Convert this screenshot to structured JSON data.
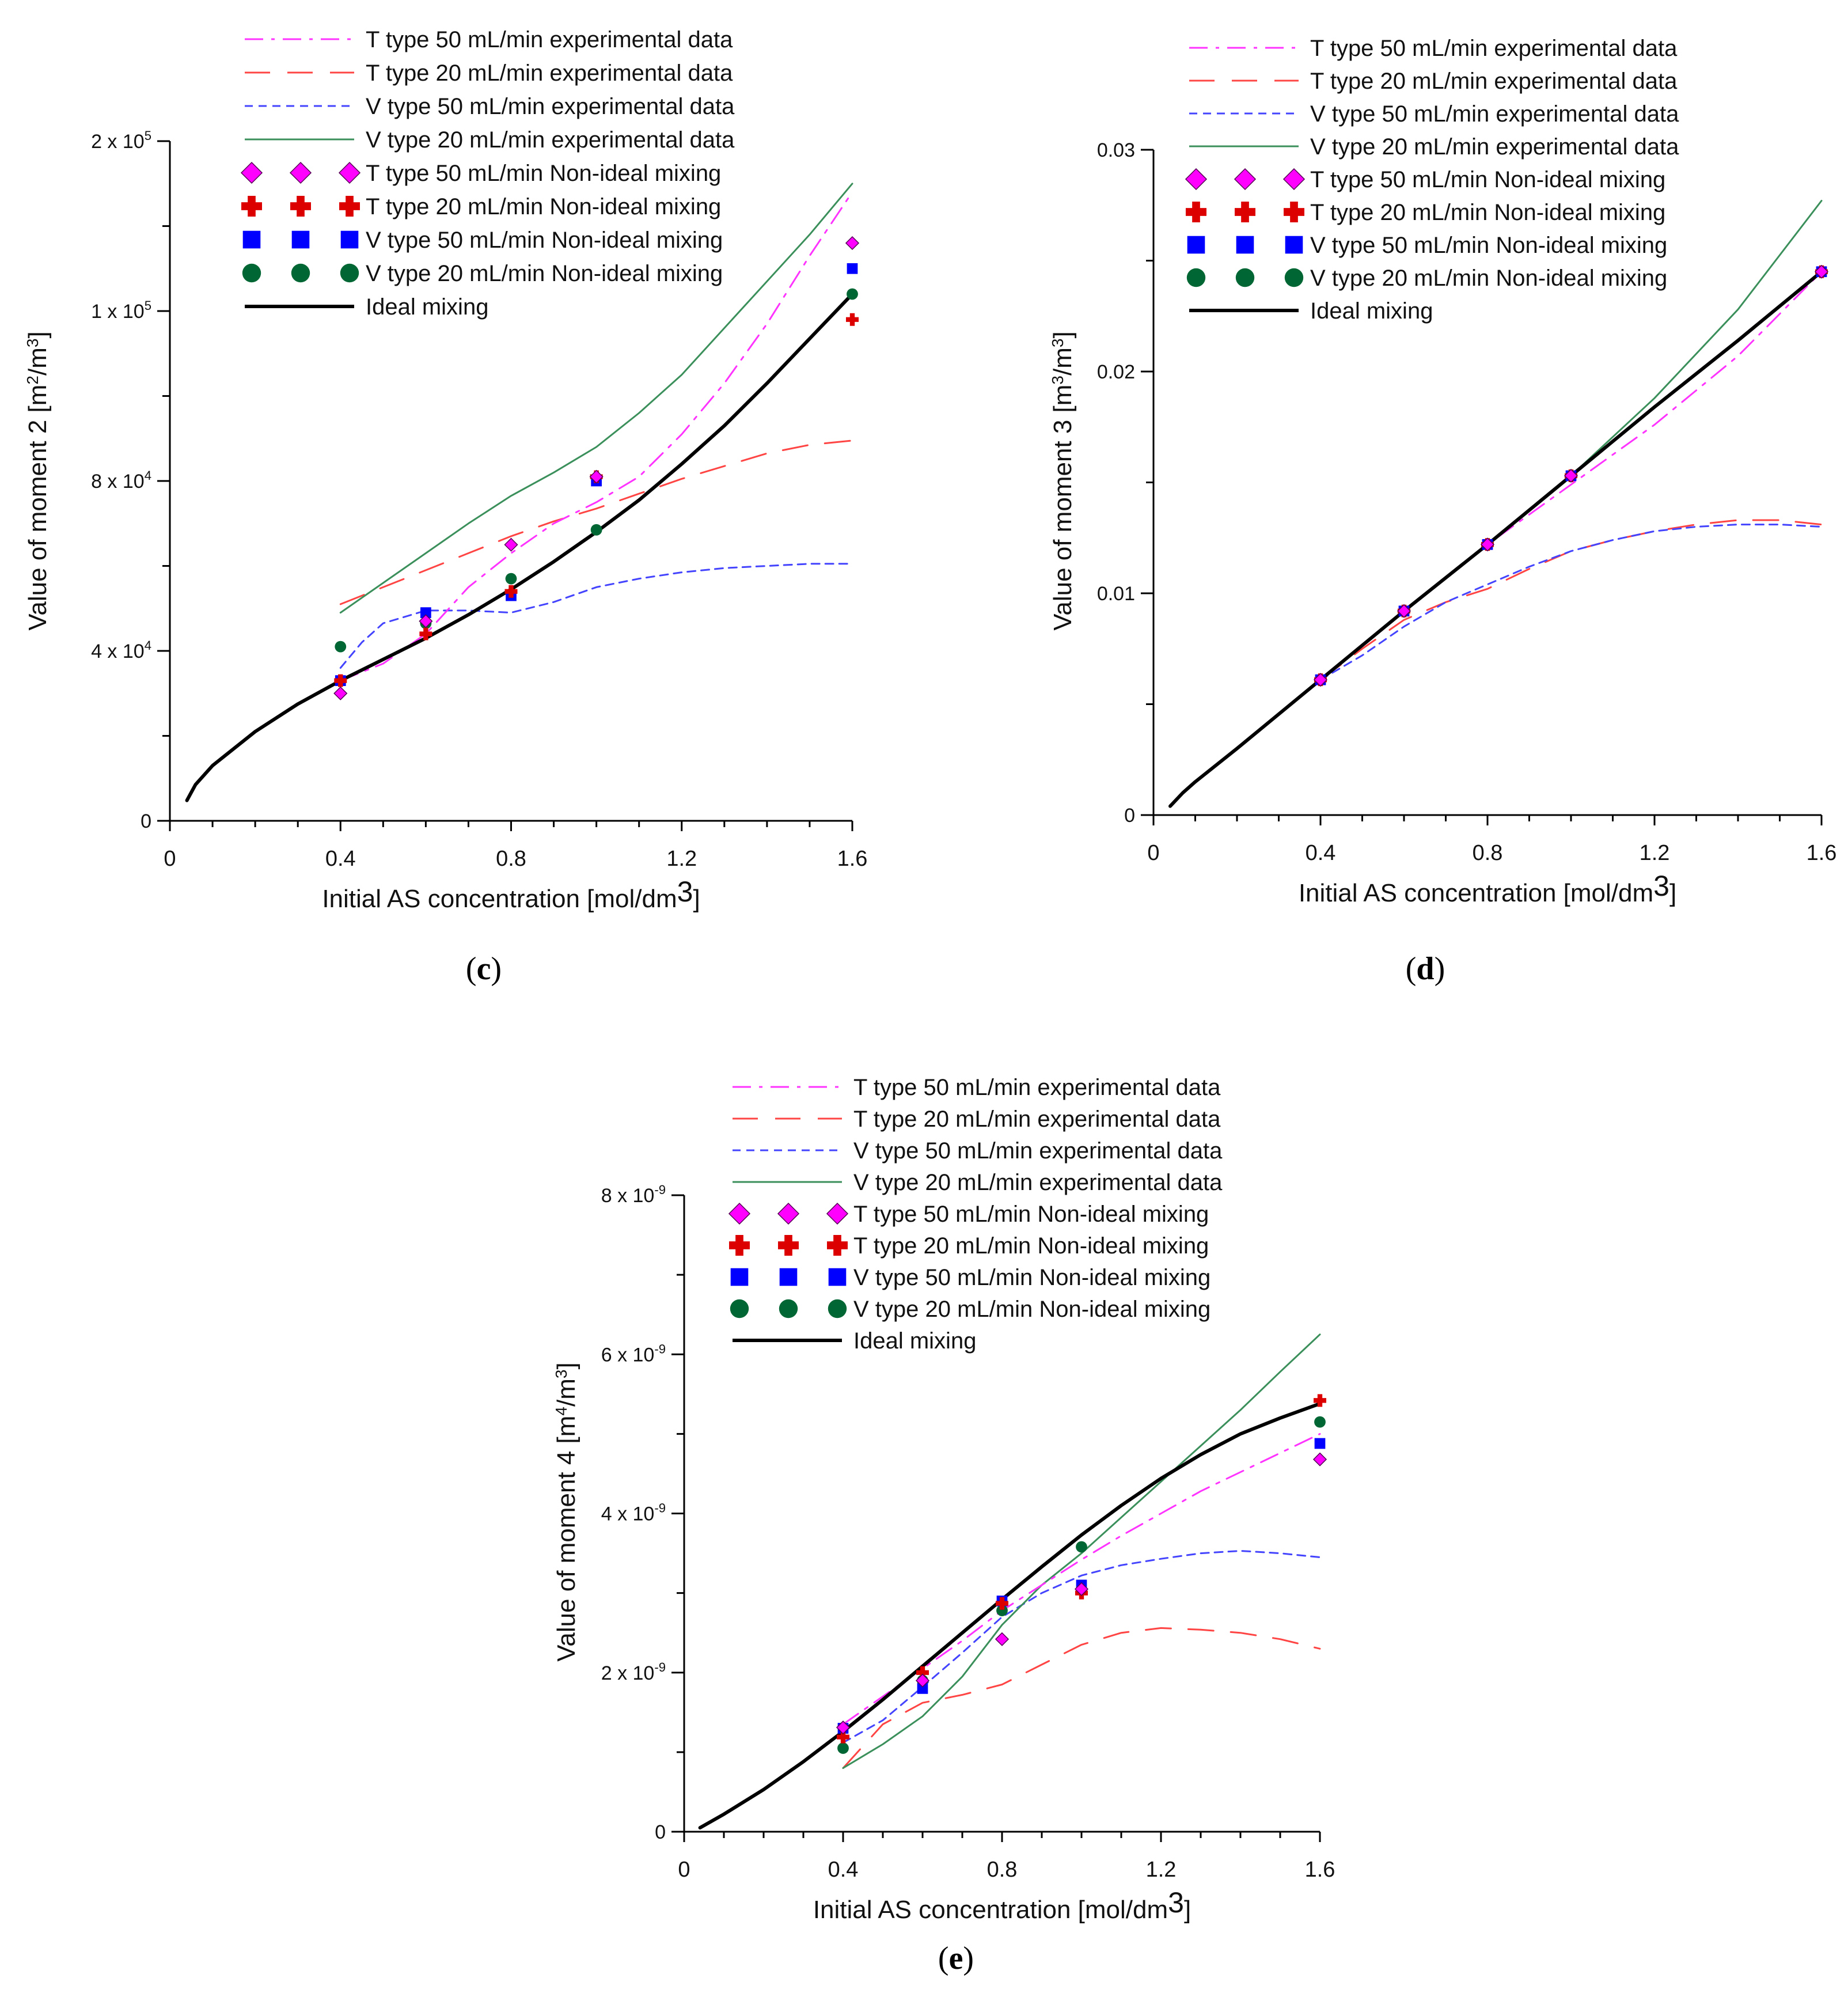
{
  "legend_entries": [
    {
      "key": "t50_exp",
      "label": "T type 50 mL/min experimental data",
      "kind": "line",
      "color": "#ff33ff",
      "dash": "32,14,6,14",
      "width": 3
    },
    {
      "key": "t20_exp",
      "label": "T type 20 mL/min experimental data",
      "kind": "line",
      "color": "#ff4444",
      "dash": "44,30",
      "width": 3
    },
    {
      "key": "v50_exp",
      "label": "V type 50 mL/min experimental data",
      "kind": "line",
      "color": "#4444ff",
      "dash": "14,10",
      "width": 3
    },
    {
      "key": "v20_exp",
      "label": "V type 20 mL/min experimental data",
      "kind": "line",
      "color": "#3a8f5a",
      "dash": "",
      "width": 3
    },
    {
      "key": "t50_nim",
      "label": "T type 50 mL/min Non-ideal mixing",
      "kind": "diamond",
      "color": "#ff00ff"
    },
    {
      "key": "t20_nim",
      "label": "T type 20 mL/min Non-ideal mixing",
      "kind": "plus",
      "color": "#dd0000"
    },
    {
      "key": "v50_nim",
      "label": "V type 50 mL/min Non-ideal mixing",
      "kind": "square",
      "color": "#0000ff"
    },
    {
      "key": "v20_nim",
      "label": "V type 20 mL/min Non-ideal mixing",
      "kind": "circle",
      "color": "#006633"
    },
    {
      "key": "ideal",
      "label": "Ideal mixing",
      "kind": "line",
      "color": "#000000",
      "dash": "",
      "width": 6
    }
  ],
  "chart_data": [
    {
      "id": "c",
      "type": "line",
      "panel_label": "c",
      "xlabel": "Initial AS concentration [mol/dm3]",
      "ylabel": "Value of moment 2 [m2/m3]",
      "xlim": [
        0,
        1.6
      ],
      "ylim": [
        0,
        160000
      ],
      "xticks": [
        {
          "v": 0,
          "label": "0"
        },
        {
          "v": 0.4,
          "label": "0.4"
        },
        {
          "v": 0.8,
          "label": "0.8"
        },
        {
          "v": 1.2,
          "label": "1.2"
        },
        {
          "v": 1.6,
          "label": "1.6"
        }
      ],
      "yticks": [
        {
          "v": 0,
          "label": "0"
        },
        {
          "v": 40000,
          "label": "4 x 10^4"
        },
        {
          "v": 80000,
          "label": "8 x 10^4"
        },
        {
          "v": 120000,
          "label": "1 x 10^5"
        },
        {
          "v": 160000,
          "label": "2 x 10^5"
        }
      ],
      "lines": {
        "ideal": {
          "x": [
            0.04,
            0.06,
            0.1,
            0.2,
            0.3,
            0.4,
            0.5,
            0.6,
            0.7,
            0.8,
            0.9,
            1.0,
            1.1,
            1.2,
            1.3,
            1.4,
            1.5,
            1.6
          ],
          "y": [
            4800,
            8500,
            13000,
            21000,
            27500,
            33000,
            38000,
            43000,
            48500,
            54500,
            61000,
            68000,
            75500,
            84000,
            93000,
            103000,
            113500,
            124000
          ]
        },
        "t50_exp": {
          "x": [
            0.4,
            0.5,
            0.6,
            0.7,
            0.8,
            0.9,
            1.0,
            1.1,
            1.2,
            1.3,
            1.4,
            1.5,
            1.6
          ],
          "y": [
            33000,
            37000,
            44000,
            55000,
            63000,
            70000,
            75000,
            81000,
            91000,
            103000,
            117000,
            133000,
            148000
          ]
        },
        "t20_exp": {
          "x": [
            0.4,
            0.5,
            0.6,
            0.7,
            0.8,
            0.9,
            1.0,
            1.1,
            1.2,
            1.3,
            1.4,
            1.5,
            1.6
          ],
          "y": [
            51000,
            55000,
            59000,
            63000,
            67000,
            70500,
            73500,
            77000,
            80500,
            83500,
            86500,
            88500,
            89500
          ]
        },
        "v50_exp": {
          "x": [
            0.4,
            0.45,
            0.5,
            0.6,
            0.7,
            0.8,
            0.9,
            1.0,
            1.1,
            1.2,
            1.3,
            1.4,
            1.5,
            1.6
          ],
          "y": [
            36000,
            42000,
            46500,
            49500,
            49500,
            49000,
            51500,
            55000,
            57000,
            58500,
            59500,
            60000,
            60500,
            60500
          ]
        },
        "v20_exp": {
          "x": [
            0.4,
            0.5,
            0.6,
            0.7,
            0.8,
            0.9,
            1.0,
            1.1,
            1.2,
            1.3,
            1.4,
            1.5,
            1.6
          ],
          "y": [
            49000,
            56000,
            63000,
            70000,
            76500,
            82000,
            88000,
            96000,
            105000,
            116000,
            127000,
            138000,
            150000
          ]
        }
      },
      "markers": {
        "t50_nim": {
          "x": [
            0.4,
            0.6,
            0.8,
            1.0,
            1.6
          ],
          "y": [
            30000,
            47000,
            65000,
            81000,
            136000
          ]
        },
        "t20_nim": {
          "x": [
            0.4,
            0.6,
            0.8,
            1.0,
            1.6
          ],
          "y": [
            33000,
            44000,
            54000,
            81000,
            118000
          ]
        },
        "v50_nim": {
          "x": [
            0.4,
            0.6,
            0.8,
            1.0,
            1.6
          ],
          "y": [
            33000,
            49000,
            53000,
            80000,
            130000
          ]
        },
        "v20_nim": {
          "x": [
            0.4,
            0.6,
            0.8,
            1.0,
            1.6
          ],
          "y": [
            41000,
            46500,
            57000,
            68500,
            124000
          ]
        }
      }
    },
    {
      "id": "d",
      "type": "line",
      "panel_label": "d",
      "xlabel": "Initial AS concentration [mol/dm3]",
      "ylabel": "Value of moment 3 [m3/m3]",
      "xlim": [
        0,
        1.6
      ],
      "ylim": [
        0,
        0.03
      ],
      "xticks": [
        {
          "v": 0,
          "label": "0"
        },
        {
          "v": 0.4,
          "label": "0.4"
        },
        {
          "v": 0.8,
          "label": "0.8"
        },
        {
          "v": 1.2,
          "label": "1.2"
        },
        {
          "v": 1.6,
          "label": "1.6"
        }
      ],
      "yticks": [
        {
          "v": 0,
          "label": "0"
        },
        {
          "v": 0.01,
          "label": "0.01"
        },
        {
          "v": 0.02,
          "label": "0.02"
        },
        {
          "v": 0.03,
          "label": "0.03"
        }
      ],
      "lines": {
        "ideal": {
          "x": [
            0.04,
            0.07,
            0.1,
            0.2,
            0.4,
            0.6,
            0.8,
            1.0,
            1.2,
            1.4,
            1.6
          ],
          "y": [
            0.0004,
            0.001,
            0.0015,
            0.003,
            0.0061,
            0.0092,
            0.0122,
            0.0153,
            0.0184,
            0.0214,
            0.0245
          ]
        },
        "t50_exp": {
          "x": [
            0.4,
            0.6,
            0.8,
            1.0,
            1.2,
            1.4,
            1.6
          ],
          "y": [
            0.0061,
            0.0092,
            0.0122,
            0.0149,
            0.0176,
            0.0207,
            0.0245
          ]
        },
        "t20_exp": {
          "x": [
            0.4,
            0.5,
            0.6,
            0.7,
            0.8,
            0.9,
            1.0,
            1.1,
            1.2,
            1.3,
            1.4,
            1.5,
            1.6
          ],
          "y": [
            0.0061,
            0.0075,
            0.0088,
            0.0096,
            0.0102,
            0.0111,
            0.0119,
            0.0124,
            0.0128,
            0.0131,
            0.0133,
            0.0133,
            0.0131
          ]
        },
        "v50_exp": {
          "x": [
            0.4,
            0.5,
            0.6,
            0.7,
            0.8,
            0.9,
            1.0,
            1.1,
            1.2,
            1.3,
            1.4,
            1.5,
            1.6
          ],
          "y": [
            0.0061,
            0.0072,
            0.0085,
            0.0096,
            0.0104,
            0.0112,
            0.0119,
            0.0124,
            0.0128,
            0.013,
            0.0131,
            0.0131,
            0.013
          ]
        },
        "v20_exp": {
          "x": [
            0.4,
            0.6,
            0.8,
            1.0,
            1.2,
            1.4,
            1.6
          ],
          "y": [
            0.0061,
            0.0092,
            0.0122,
            0.0153,
            0.0188,
            0.0228,
            0.0277
          ]
        }
      },
      "markers": {
        "t50_nim": {
          "x": [
            0.4,
            0.6,
            0.8,
            1.0,
            1.6
          ],
          "y": [
            0.0061,
            0.0092,
            0.0122,
            0.0153,
            0.0245
          ]
        },
        "t20_nim": {
          "x": [
            0.4,
            0.6,
            0.8,
            1.0,
            1.6
          ],
          "y": [
            0.0061,
            0.0092,
            0.0122,
            0.0153,
            0.0245
          ]
        },
        "v50_nim": {
          "x": [
            0.4,
            0.6,
            0.8,
            1.0,
            1.6
          ],
          "y": [
            0.0061,
            0.0092,
            0.0122,
            0.0153,
            0.0245
          ]
        },
        "v20_nim": {
          "x": [
            0.4,
            0.6,
            0.8,
            1.0,
            1.6
          ],
          "y": [
            0.0061,
            0.0092,
            0.0122,
            0.0153,
            0.0245
          ]
        }
      }
    },
    {
      "id": "e",
      "type": "line",
      "panel_label": "e",
      "xlabel": "Initial AS concentration [mol/dm3]",
      "ylabel": "Value of moment 4 [m4/m3]",
      "xlim": [
        0,
        1.6
      ],
      "ylim": [
        0,
        8e-09
      ],
      "xticks": [
        {
          "v": 0,
          "label": "0"
        },
        {
          "v": 0.4,
          "label": "0.4"
        },
        {
          "v": 0.8,
          "label": "0.8"
        },
        {
          "v": 1.2,
          "label": "1.2"
        },
        {
          "v": 1.6,
          "label": "1.6"
        }
      ],
      "yticks": [
        {
          "v": 0,
          "label": "0"
        },
        {
          "v": 2e-09,
          "label": "2 x 10^-9"
        },
        {
          "v": 4e-09,
          "label": "4 x 10^-9"
        },
        {
          "v": 6e-09,
          "label": "6 x 10^-9"
        },
        {
          "v": 8e-09,
          "label": "8 x 10^-9"
        }
      ],
      "lines": {
        "ideal": {
          "x": [
            0.04,
            0.1,
            0.2,
            0.3,
            0.4,
            0.5,
            0.6,
            0.7,
            0.8,
            0.9,
            1.0,
            1.1,
            1.2,
            1.3,
            1.4,
            1.5,
            1.6
          ],
          "y": [
            5e-11,
            2.2e-10,
            5.3e-10,
            8.8e-10,
            1.26e-09,
            1.66e-09,
            2.08e-09,
            2.5e-09,
            2.92e-09,
            3.33e-09,
            3.73e-09,
            4.1e-09,
            4.44e-09,
            4.74e-09,
            5e-09,
            5.2e-09,
            5.38e-09
          ]
        },
        "t50_exp": {
          "x": [
            0.4,
            0.5,
            0.6,
            0.7,
            0.8,
            0.9,
            1.0,
            1.1,
            1.2,
            1.3,
            1.4,
            1.5,
            1.6
          ],
          "y": [
            1.35e-09,
            1.7e-09,
            2.05e-09,
            2.4e-09,
            2.78e-09,
            3.1e-09,
            3.42e-09,
            3.72e-09,
            4e-09,
            4.28e-09,
            4.52e-09,
            4.76e-09,
            5e-09
          ]
        },
        "t20_exp": {
          "x": [
            0.4,
            0.5,
            0.6,
            0.7,
            0.8,
            0.9,
            1.0,
            1.1,
            1.2,
            1.3,
            1.4,
            1.5,
            1.6
          ],
          "y": [
            8e-10,
            1.35e-09,
            1.62e-09,
            1.72e-09,
            1.85e-09,
            2.1e-09,
            2.35e-09,
            2.5e-09,
            2.56e-09,
            2.54e-09,
            2.5e-09,
            2.42e-09,
            2.3e-09
          ]
        },
        "v50_exp": {
          "x": [
            0.4,
            0.5,
            0.6,
            0.7,
            0.8,
            0.9,
            1.0,
            1.1,
            1.2,
            1.3,
            1.4,
            1.5,
            1.6
          ],
          "y": [
            1.12e-09,
            1.4e-09,
            1.82e-09,
            2.25e-09,
            2.7e-09,
            3e-09,
            3.22e-09,
            3.35e-09,
            3.43e-09,
            3.5e-09,
            3.53e-09,
            3.5e-09,
            3.45e-09
          ]
        },
        "v20_exp": {
          "x": [
            0.4,
            0.5,
            0.6,
            0.7,
            0.8,
            0.9,
            1.0,
            1.1,
            1.2,
            1.3,
            1.4,
            1.5,
            1.6
          ],
          "y": [
            8e-10,
            1.1e-09,
            1.45e-09,
            1.95e-09,
            2.6e-09,
            3.1e-09,
            3.5e-09,
            3.95e-09,
            4.4e-09,
            4.85e-09,
            5.3e-09,
            5.78e-09,
            6.25e-09
          ]
        }
      },
      "markers": {
        "t50_nim": {
          "x": [
            0.4,
            0.6,
            0.8,
            1.0,
            1.6
          ],
          "y": [
            1.31e-09,
            1.9e-09,
            2.42e-09,
            3.05e-09,
            4.68e-09
          ]
        },
        "t20_nim": {
          "x": [
            0.4,
            0.6,
            0.8,
            1.0,
            1.6
          ],
          "y": [
            1.19e-09,
            2e-09,
            2.87e-09,
            3e-09,
            5.42e-09
          ]
        },
        "v50_nim": {
          "x": [
            0.4,
            0.6,
            0.8,
            1.0,
            1.6
          ],
          "y": [
            1.3e-09,
            1.8e-09,
            2.9e-09,
            3.1e-09,
            4.88e-09
          ]
        },
        "v20_nim": {
          "x": [
            0.4,
            0.6,
            0.8,
            1.0,
            1.6
          ],
          "y": [
            1.05e-09,
            1.9e-09,
            2.78e-09,
            3.58e-09,
            5.15e-09
          ]
        }
      }
    }
  ]
}
